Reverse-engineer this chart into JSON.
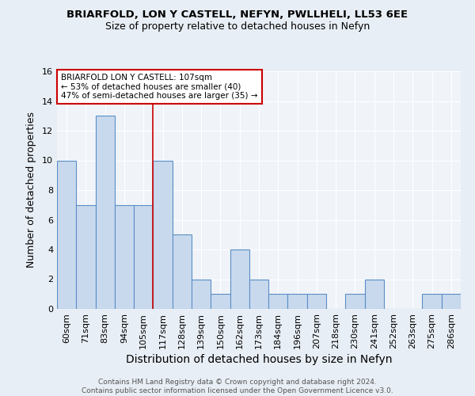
{
  "title1": "BRIARFOLD, LON Y CASTELL, NEFYN, PWLLHELI, LL53 6EE",
  "title2": "Size of property relative to detached houses in Nefyn",
  "xlabel": "Distribution of detached houses by size in Nefyn",
  "ylabel": "Number of detached properties",
  "bin_labels": [
    "60sqm",
    "71sqm",
    "83sqm",
    "94sqm",
    "105sqm",
    "117sqm",
    "128sqm",
    "139sqm",
    "150sqm",
    "162sqm",
    "173sqm",
    "184sqm",
    "196sqm",
    "207sqm",
    "218sqm",
    "230sqm",
    "241sqm",
    "252sqm",
    "263sqm",
    "275sqm",
    "286sqm"
  ],
  "values": [
    10,
    7,
    13,
    7,
    7,
    10,
    5,
    2,
    1,
    4,
    2,
    1,
    1,
    1,
    0,
    1,
    2,
    0,
    0,
    1,
    1
  ],
  "bar_color": "#c9d9ed",
  "bar_edge_color": "#5b8fc7",
  "red_line_x": 4.5,
  "annotation_text": "BRIARFOLD LON Y CASTELL: 107sqm\n← 53% of detached houses are smaller (40)\n47% of semi-detached houses are larger (35) →",
  "annotation_box_color": "#ffffff",
  "annotation_box_edge": "#cc0000",
  "red_line_color": "#cc0000",
  "ylim": [
    0,
    16
  ],
  "yticks": [
    0,
    2,
    4,
    6,
    8,
    10,
    12,
    14,
    16
  ],
  "footer": "Contains HM Land Registry data © Crown copyright and database right 2024.\nContains public sector information licensed under the Open Government Licence v3.0.",
  "bg_color": "#e8eef5",
  "plot_bg_color": "#f0f4f9",
  "grid_color": "#ffffff",
  "title1_fontsize": 9.5,
  "title2_fontsize": 9.0,
  "xlabel_fontsize": 10,
  "ylabel_fontsize": 9,
  "tick_fontsize": 8,
  "annot_fontsize": 7.5,
  "footer_fontsize": 6.5
}
